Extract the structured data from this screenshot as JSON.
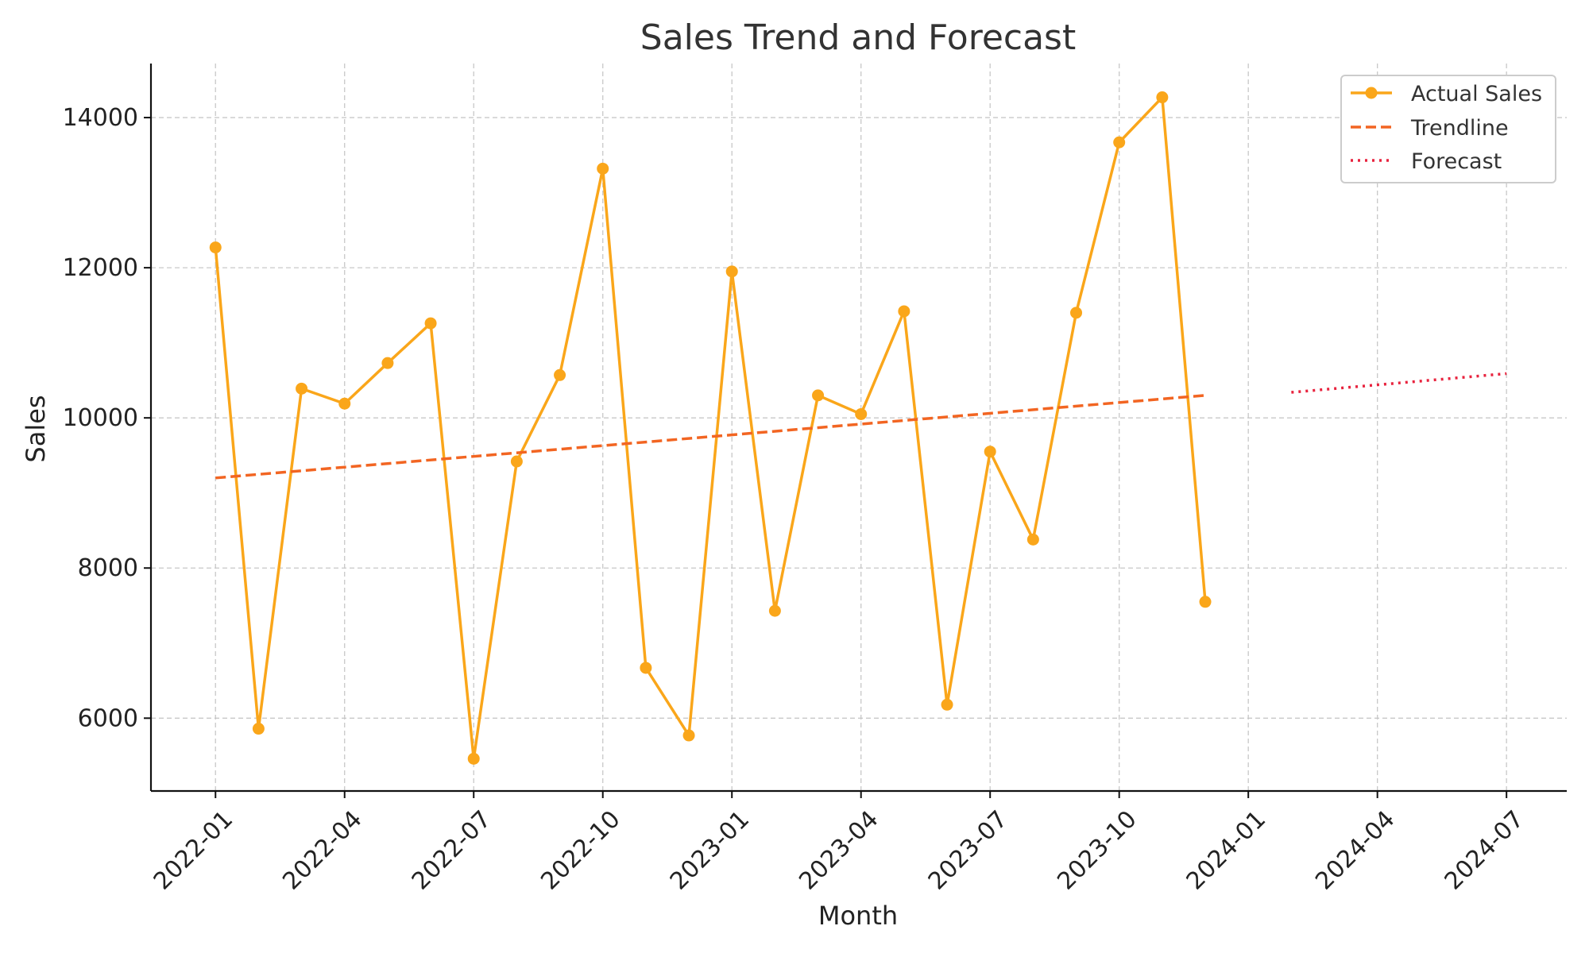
{
  "chart_data": {
    "type": "line",
    "title": "Sales Trend and Forecast",
    "xlabel": "Month",
    "ylabel": "Sales",
    "x_tick_labels": [
      "2022-01",
      "2022-04",
      "2022-07",
      "2022-10",
      "2023-01",
      "2023-04",
      "2023-07",
      "2023-10",
      "2024-01",
      "2024-04",
      "2024-07"
    ],
    "y_ticks": [
      6000,
      8000,
      10000,
      12000,
      14000
    ],
    "y_tick_labels": [
      "6000",
      "8000",
      "10000",
      "12000",
      "14000"
    ],
    "ylim": [
      5030,
      14720
    ],
    "xlim_month_index": [
      -1.5,
      31.4
    ],
    "grid": true,
    "legend_position": "top-right",
    "series": [
      {
        "name": "Actual Sales",
        "style": "solid-line-with-markers",
        "color": "#FAA61A",
        "months": [
          "2022-01",
          "2022-02",
          "2022-03",
          "2022-04",
          "2022-05",
          "2022-06",
          "2022-07",
          "2022-08",
          "2022-09",
          "2022-10",
          "2022-11",
          "2022-12",
          "2023-01",
          "2023-02",
          "2023-03",
          "2023-04",
          "2023-05",
          "2023-06",
          "2023-07",
          "2023-08",
          "2023-09",
          "2023-10",
          "2023-11",
          "2023-12"
        ],
        "x": [
          0,
          1,
          2,
          3,
          4,
          5,
          6,
          7,
          8,
          9,
          10,
          11,
          12,
          13,
          14,
          15,
          16,
          17,
          18,
          19,
          20,
          21,
          22,
          23
        ],
        "values": [
          12270,
          5860,
          10390,
          10190,
          10730,
          11260,
          5460,
          9420,
          10570,
          13320,
          6670,
          5770,
          11950,
          7430,
          10300,
          10050,
          11420,
          6180,
          9550,
          8380,
          11400,
          13670,
          14270,
          7550
        ]
      },
      {
        "name": "Trendline",
        "style": "dashed",
        "color": "#F26522",
        "x": [
          0,
          23
        ],
        "values": [
          9200,
          10300
        ]
      },
      {
        "name": "Forecast",
        "style": "dotted",
        "color": "#E8233E",
        "x": [
          25,
          30
        ],
        "values": [
          10340,
          10590
        ]
      }
    ]
  }
}
